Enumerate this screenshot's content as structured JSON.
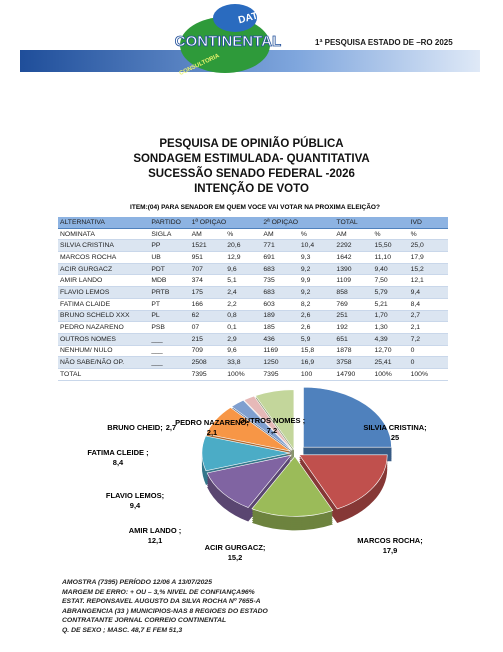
{
  "header": {
    "logo_top": "DATA",
    "logo_main": "CONTINENTAL",
    "logo_sub": "CONSULTORIA",
    "note": "1ª PESQUISA ESTADO DE –RO 2025"
  },
  "titles": [
    "PESQUISA DE OPINIÃO PÚBLICA",
    "SONDAGEM ESTIMULADA- QUANTITATIVA",
    "SUCESSÃO SENADO FEDERAL -2026",
    "INTENÇÃO DE VOTO"
  ],
  "item": "ITEM:(04) PARA SENADOR EM QUEM VOCE VAI VOTAR NA PROXIMA ELEIÇÃO?",
  "table": {
    "header1": [
      "ALTERNATIVA",
      "PARTIDO",
      "1ª OPIÇAO",
      "2ª OPIÇAO",
      "TOTAL",
      "IVD"
    ],
    "header2": [
      "NOMINATA",
      "SIGLA",
      "AM",
      "%",
      "AM",
      "%",
      "AM",
      "%",
      "%"
    ],
    "rows": [
      [
        "SILVIA CRISTINA",
        "PP",
        "1521",
        "20,6",
        "771",
        "10,4",
        "2292",
        "15,50",
        "25,0"
      ],
      [
        "MARCOS ROCHA",
        "UB",
        "951",
        "12,9",
        "691",
        "9,3",
        "1642",
        "11,10",
        "17,9"
      ],
      [
        "ACIR GURGACZ",
        "PDT",
        "707",
        "9,6",
        "683",
        "9,2",
        "1390",
        "9,40",
        "15,2"
      ],
      [
        "AMIR LANDO",
        "MDB",
        "374",
        "5,1",
        "735",
        "9,9",
        "1109",
        "7,50",
        "12,1"
      ],
      [
        "FLAVIO LEMOS",
        "PRTB",
        "175",
        "2,4",
        "683",
        "9,2",
        "858",
        "5,79",
        "9,4"
      ],
      [
        "FATIMA CLAIDE",
        "PT",
        "166",
        "2,2",
        "603",
        "8,2",
        "769",
        "5,21",
        "8,4"
      ],
      [
        "BRUNO SCHELD XXX",
        "PL",
        "62",
        "0,8",
        "189",
        "2,6",
        "251",
        "1,70",
        "2,7"
      ],
      [
        "PEDRO NAZARENO",
        "PSB",
        "07",
        "0,1",
        "185",
        "2,6",
        "192",
        "1,30",
        "2,1"
      ],
      [
        "OUTROS NOMES",
        "___",
        "215",
        "2,9",
        "436",
        "5,9",
        "651",
        "4,39",
        "7,2"
      ],
      [
        "NENHUM/ NULO",
        "___",
        "709",
        "9,6",
        "1169",
        "15,8",
        "1878",
        "12,70",
        "0"
      ],
      [
        "NÃO SABE/NÃO OP.",
        "___",
        "2508",
        "33,8",
        "1250",
        "16,9",
        "3758",
        "25,41",
        "0"
      ],
      [
        "TOTAL",
        "",
        "7395",
        "100%",
        "7395",
        "100",
        "14790",
        "100%",
        "100%"
      ]
    ]
  },
  "chart_data": {
    "type": "pie",
    "categories": [
      "SILVIA CRISTINA;",
      "MARCOS ROCHA;",
      "ACIR GURGACZ;",
      "AMIR LANDO ;",
      "FLAVIO LEMOS;",
      "FATIMA CLEIDE ;",
      "BRUNO CHEID;",
      "PEDRO NAZARENO;",
      "OUTROS NOMES ;"
    ],
    "values": [
      25,
      17.9,
      15.2,
      12.1,
      9.4,
      8.4,
      2.7,
      2.1,
      7.2
    ],
    "value_labels": [
      "25",
      "17,9",
      "15,2",
      "12,1",
      "9,4",
      "8,4",
      "2,7",
      "2,1",
      "7,2"
    ],
    "colors": [
      "#4f81bd",
      "#c0504d",
      "#9bbb59",
      "#8064a2",
      "#4bacc6",
      "#f79646",
      "#7f9fcf",
      "#e6b9b8",
      "#c3d69b"
    ]
  },
  "footer": [
    "AMOSTRA (7395) PERÍODO  12/06 A 13/07/2025",
    "MARGEM DE ERRO: + OU – 3,% NIVEL DE CONFIANÇA96%",
    "ESTAT. REPONSAVEL AUGUSTO DA SILVA ROCHA Nº 7655-A",
    "ABRANGENCIA (33 ) MUNICIPIOS-NAS 8 REGIOES DO ESTADO",
    "CONTRATANTE JORNAL CORREIO CONTINENTAL",
    "Q. DE SEXO ; MASC. 48,7 E FEM 51,3"
  ]
}
